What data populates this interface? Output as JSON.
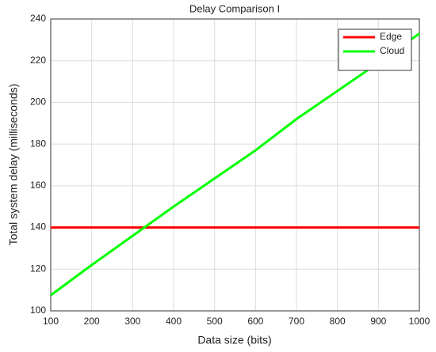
{
  "chart_data": {
    "type": "line",
    "title": "Delay Comparison I",
    "x_label": "Data size (bits)",
    "y_label": "Total system delay (milliseconds)",
    "x": [
      100,
      200,
      300,
      400,
      500,
      600,
      700,
      800,
      900,
      1000
    ],
    "series": [
      {
        "name": "Edge",
        "color": "#ff0000",
        "values": [
          140,
          140,
          140,
          140,
          140,
          140,
          140,
          140,
          140,
          140
        ]
      },
      {
        "name": "Cloud",
        "color": "#00ff00",
        "values": [
          107.5,
          122,
          136,
          150,
          163.5,
          177,
          192,
          205.5,
          219,
          233
        ]
      }
    ],
    "xlim": [
      100,
      1000
    ],
    "xticks": [
      100,
      200,
      300,
      400,
      500,
      600,
      700,
      800,
      900,
      1000
    ],
    "ylim": [
      100,
      240
    ],
    "yticks": [
      100,
      120,
      140,
      160,
      180,
      200,
      220,
      240
    ],
    "grid": true,
    "legend": "northeast"
  }
}
